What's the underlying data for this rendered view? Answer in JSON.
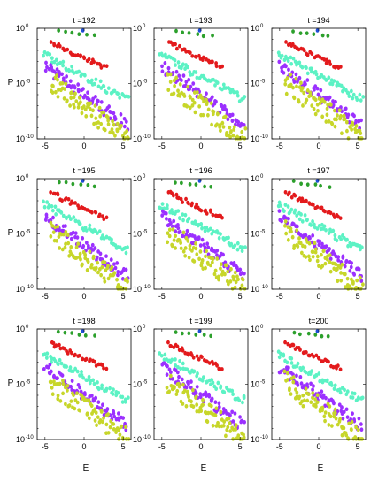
{
  "figure": {
    "xlabel": "E",
    "ylabel": "P",
    "xlim": [
      -6,
      6
    ],
    "ylim_log10": [
      -10,
      0
    ],
    "x_ticks": [
      -5,
      0,
      5
    ],
    "y_ticks": [
      {
        "value": 0,
        "label": "10",
        "exponent": "0"
      },
      {
        "value": -5,
        "label": "10",
        "exponent": "-5"
      },
      {
        "value": -10,
        "label": "10",
        "exponent": "-10"
      }
    ],
    "colors": {
      "green": "#2ca02c",
      "blue": "#1f4fd8",
      "red": "#e31a1c",
      "cyan": "#5cf2c4",
      "purple": "#9b30ff",
      "olive": "#c7d62a"
    }
  },
  "chart_data": [
    {
      "type": "scatter",
      "title": "t =192",
      "scale_y": "log"
    },
    {
      "type": "scatter",
      "title": "t =193",
      "scale_y": "log"
    },
    {
      "type": "scatter",
      "title": "t =194",
      "scale_y": "log"
    },
    {
      "type": "scatter",
      "title": "t =195",
      "scale_y": "log"
    },
    {
      "type": "scatter",
      "title": "t =196",
      "scale_y": "log"
    },
    {
      "type": "scatter",
      "title": "t =197",
      "scale_y": "log"
    },
    {
      "type": "scatter",
      "title": "t =198",
      "scale_y": "log"
    },
    {
      "type": "scatter",
      "title": "t =199",
      "scale_y": "log"
    },
    {
      "type": "scatter",
      "title": "t=200",
      "scale_y": "log"
    }
  ],
  "series_template": [
    {
      "color_key": "green",
      "x_start": -3.3,
      "x_end": 1.3,
      "count": 6,
      "y_start": -0.3,
      "y_end": -0.7,
      "jitter": 0.1
    },
    {
      "color_key": "blue",
      "x_start": -0.3,
      "x_end": -0.3,
      "count": 1,
      "y_start": -0.2,
      "y_end": -0.2,
      "jitter": 0.0
    },
    {
      "color_key": "red",
      "x_start": -4.2,
      "x_end": 2.8,
      "count": 30,
      "y_start": -1.3,
      "y_end": -3.6,
      "jitter": 0.2
    },
    {
      "color_key": "cyan",
      "x_start": -5.2,
      "x_end": 5.6,
      "count": 55,
      "y_start": -2.3,
      "y_end": -6.5,
      "jitter": 0.35
    },
    {
      "color_key": "purple",
      "x_start": -5.0,
      "x_end": 5.5,
      "count": 70,
      "y_start": -3.4,
      "y_end": -8.8,
      "jitter": 0.55
    },
    {
      "color_key": "olive",
      "x_start": -4.3,
      "x_end": 5.6,
      "count": 80,
      "y_start": -4.8,
      "y_end": -10.0,
      "jitter": 1.0
    }
  ]
}
